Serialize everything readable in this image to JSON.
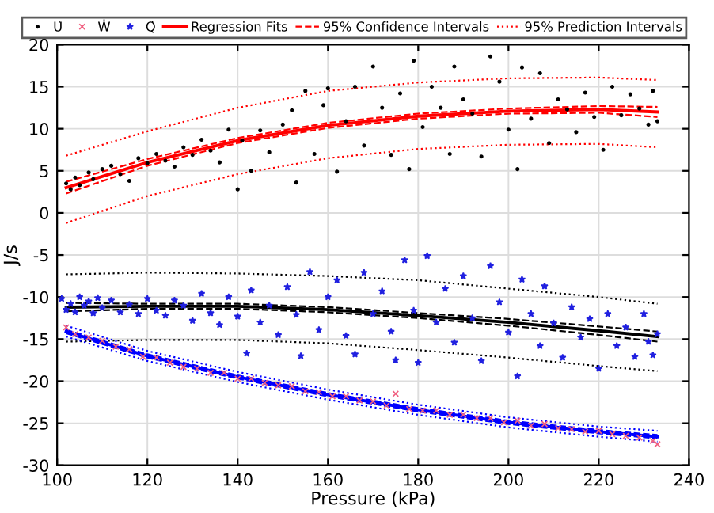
{
  "chart_data": {
    "type": "scatter",
    "xlabel": "Pressure (kPa)",
    "ylabel": "J/s",
    "xlim": [
      100,
      240
    ],
    "xticks": [
      100,
      120,
      140,
      160,
      180,
      200,
      220,
      240
    ],
    "ylim": [
      -30,
      20
    ],
    "yticks": [
      -30,
      -25,
      -20,
      -15,
      -10,
      -5,
      0,
      5,
      10,
      15,
      20
    ],
    "grid": true,
    "legend": "top",
    "series": [
      {
        "name": "U̇",
        "color": "#000000",
        "marker": "circle",
        "x": [
          102,
          103,
          104,
          105,
          107,
          108,
          110,
          112,
          114,
          116,
          118,
          120,
          122,
          124,
          126,
          128,
          130,
          132,
          134,
          136,
          138,
          140,
          141,
          143,
          145,
          147,
          150,
          152,
          153,
          155,
          157,
          159,
          160,
          162,
          164,
          166,
          168,
          170,
          172,
          174,
          176,
          178,
          179,
          181,
          183,
          185,
          187,
          188,
          190,
          192,
          194,
          196,
          198,
          200,
          202,
          203,
          205,
          207,
          209,
          211,
          213,
          215,
          217,
          219,
          221,
          223,
          225,
          227,
          229,
          231,
          232,
          233
        ],
        "values": [
          3.5,
          2.8,
          4.2,
          3.3,
          4.8,
          4.0,
          5.2,
          5.6,
          4.6,
          3.8,
          6.5,
          5.9,
          7.0,
          6.2,
          5.5,
          7.8,
          6.9,
          8.7,
          7.4,
          6.0,
          9.9,
          2.8,
          8.6,
          5.0,
          9.8,
          7.2,
          10.5,
          12.2,
          3.6,
          14.5,
          7.0,
          12.8,
          14.8,
          4.9,
          10.9,
          15.0,
          8.0,
          17.4,
          12.5,
          6.9,
          14.2,
          5.2,
          18.1,
          10.2,
          15.0,
          12.5,
          7.0,
          17.4,
          13.5,
          11.8,
          6.7,
          18.6,
          15.6,
          9.9,
          5.2,
          17.3,
          11.2,
          16.6,
          8.3,
          13.5,
          12.3,
          9.6,
          14.3,
          11.4,
          7.5,
          15.0,
          11.6,
          14.1,
          12.4,
          10.5,
          14.5,
          10.9
        ]
      },
      {
        "name": "Ẇ",
        "color": "#f06080",
        "marker": "cross",
        "x": [
          102,
          104,
          107,
          110,
          113,
          116,
          119,
          122,
          125,
          128,
          131,
          134,
          137,
          140,
          143,
          146,
          149,
          152,
          155,
          158,
          161,
          164,
          167,
          170,
          173,
          175,
          178,
          181,
          184,
          187,
          190,
          193,
          196,
          199,
          202,
          205,
          208,
          211,
          214,
          217,
          220,
          223,
          226,
          229,
          232,
          233
        ],
        "values": [
          -13.6,
          -14.4,
          -14.8,
          -15.2,
          -15.9,
          -16.2,
          -17.1,
          -17.2,
          -17.8,
          -18.3,
          -18.5,
          -19.0,
          -19.0,
          -19.7,
          -19.7,
          -20.2,
          -20.5,
          -20.6,
          -21.2,
          -21.3,
          -21.8,
          -21.8,
          -22.3,
          -22.4,
          -22.9,
          -21.5,
          -23.3,
          -23.5,
          -23.5,
          -24.0,
          -24.0,
          -24.4,
          -24.4,
          -24.9,
          -24.7,
          -25.3,
          -25.1,
          -25.6,
          -25.7,
          -26.0,
          -25.9,
          -26.3,
          -26.5,
          -26.7,
          -27.1,
          -27.5
        ]
      },
      {
        "name": "Q̇",
        "color": "#2020e0",
        "marker": "star",
        "x": [
          101,
          102,
          103,
          104,
          105,
          106,
          107,
          108,
          109,
          110,
          112,
          114,
          116,
          118,
          120,
          122,
          124,
          126,
          128,
          130,
          132,
          134,
          136,
          138,
          140,
          142,
          143,
          145,
          147,
          149,
          151,
          153,
          154,
          156,
          158,
          160,
          162,
          164,
          166,
          168,
          170,
          172,
          174,
          175,
          177,
          179,
          180,
          182,
          184,
          186,
          188,
          190,
          192,
          194,
          196,
          198,
          200,
          202,
          203,
          205,
          207,
          208,
          210,
          212,
          214,
          216,
          218,
          220,
          222,
          224,
          226,
          228,
          230,
          231,
          232,
          233
        ],
        "values": [
          -10.2,
          -11.5,
          -10.8,
          -11.8,
          -10.0,
          -11.0,
          -10.5,
          -11.9,
          -10.1,
          -11.3,
          -10.4,
          -11.8,
          -10.9,
          -12.0,
          -10.2,
          -11.6,
          -12.2,
          -10.4,
          -11.0,
          -12.8,
          -9.6,
          -11.9,
          -13.3,
          -10.0,
          -12.3,
          -16.7,
          -9.2,
          -13.0,
          -11.0,
          -14.5,
          -8.8,
          -12.1,
          -17.0,
          -7.0,
          -13.9,
          -10.0,
          -8.0,
          -14.6,
          -16.8,
          -7.1,
          -12.0,
          -9.3,
          -14.1,
          -17.5,
          -5.6,
          -11.6,
          -17.8,
          -5.1,
          -13.0,
          -9.0,
          -15.4,
          -7.5,
          -12.5,
          -17.6,
          -6.3,
          -10.6,
          -14.2,
          -19.4,
          -7.9,
          -12.0,
          -15.8,
          -8.7,
          -13.1,
          -17.2,
          -11.2,
          -14.8,
          -12.6,
          -18.5,
          -12.0,
          -15.8,
          -13.6,
          -17.1,
          -12.0,
          -15.3,
          -16.9,
          -14.4
        ]
      },
      {
        "type": "line",
        "name": "Regression Fits",
        "color": "#ff0000",
        "line_style": "solid",
        "x": [
          102,
          120,
          140,
          160,
          180,
          200,
          220,
          233
        ],
        "values": [
          3.0,
          6.0,
          8.6,
          10.4,
          11.5,
          12.1,
          12.3,
          12.0
        ]
      },
      {
        "type": "line",
        "name": "95% Confidence Intervals",
        "color": "#ff0000",
        "line_style": "dashed",
        "x": [
          102,
          120,
          140,
          160,
          180,
          200,
          220,
          233
        ],
        "values": [
          3.7,
          6.4,
          8.9,
          10.7,
          11.8,
          12.4,
          12.7,
          12.6
        ]
      },
      {
        "type": "line",
        "name": "95% Prediction Intervals",
        "color": "#ff0000",
        "line_style": "dotted",
        "x": [
          102,
          120,
          140,
          160,
          180,
          200,
          220,
          233
        ],
        "values": [
          6.8,
          9.7,
          12.5,
          14.5,
          15.5,
          16.0,
          16.1,
          15.8
        ]
      },
      {
        "type": "line",
        "color": "#ff0000",
        "line_style": "dashed",
        "x": [
          102,
          120,
          140,
          160,
          180,
          200,
          220,
          233
        ],
        "values": [
          2.3,
          5.6,
          8.3,
          10.1,
          11.2,
          11.8,
          11.9,
          11.4
        ]
      },
      {
        "type": "line",
        "color": "#ff0000",
        "line_style": "dotted",
        "x": [
          102,
          120,
          140,
          160,
          180,
          200,
          220,
          233
        ],
        "values": [
          -1.2,
          2.0,
          4.6,
          6.5,
          7.6,
          8.1,
          8.2,
          7.8
        ]
      },
      {
        "type": "line",
        "color": "#000000",
        "line_style": "solid",
        "x": [
          102,
          120,
          140,
          160,
          180,
          200,
          220,
          233
        ],
        "values": [
          -11.2,
          -11.1,
          -11.1,
          -11.5,
          -12.2,
          -13.0,
          -14.0,
          -14.7
        ]
      },
      {
        "type": "line",
        "color": "#000000",
        "line_style": "dashed",
        "x": [
          102,
          120,
          140,
          160,
          180,
          200,
          220,
          233
        ],
        "values": [
          -10.7,
          -10.8,
          -10.8,
          -11.2,
          -11.9,
          -12.6,
          -13.5,
          -14.1
        ]
      },
      {
        "type": "line",
        "color": "#000000",
        "line_style": "dashed",
        "x": [
          102,
          120,
          140,
          160,
          180,
          200,
          220,
          233
        ],
        "values": [
          -11.7,
          -11.4,
          -11.4,
          -11.8,
          -12.5,
          -13.4,
          -14.5,
          -15.3
        ]
      },
      {
        "type": "line",
        "color": "#000000",
        "line_style": "dotted",
        "x": [
          102,
          120,
          140,
          160,
          180,
          200,
          220,
          233
        ],
        "values": [
          -7.3,
          -7.1,
          -7.2,
          -7.5,
          -8.0,
          -9.0,
          -10.0,
          -10.8
        ]
      },
      {
        "type": "line",
        "color": "#000000",
        "line_style": "dotted",
        "x": [
          102,
          120,
          140,
          160,
          180,
          200,
          220,
          233
        ],
        "values": [
          -15.3,
          -15.1,
          -15.1,
          -15.5,
          -16.3,
          -17.2,
          -18.2,
          -18.8
        ]
      },
      {
        "type": "line",
        "color": "#0000ff",
        "line_style": "solid",
        "x": [
          102,
          120,
          140,
          160,
          180,
          200,
          220,
          233
        ],
        "values": [
          -14.1,
          -17.0,
          -19.5,
          -21.6,
          -23.4,
          -24.9,
          -26.0,
          -26.6
        ]
      },
      {
        "type": "line",
        "color": "#0000ff",
        "line_style": "dashed",
        "x": [
          102,
          120,
          140,
          160,
          180,
          200,
          220,
          233
        ],
        "values": [
          -13.9,
          -16.8,
          -19.3,
          -21.4,
          -23.2,
          -24.7,
          -25.8,
          -26.4
        ]
      },
      {
        "type": "line",
        "color": "#0000ff",
        "line_style": "dashed",
        "x": [
          102,
          120,
          140,
          160,
          180,
          200,
          220,
          233
        ],
        "values": [
          -14.3,
          -17.2,
          -19.7,
          -21.8,
          -23.6,
          -25.1,
          -26.2,
          -26.8
        ]
      },
      {
        "type": "line",
        "color": "#0000ff",
        "line_style": "dotted",
        "x": [
          102,
          120,
          140,
          160,
          180,
          200,
          220,
          233
        ],
        "values": [
          -13.4,
          -16.4,
          -18.9,
          -21.0,
          -22.8,
          -24.3,
          -25.4,
          -25.9
        ]
      },
      {
        "type": "line",
        "color": "#0000ff",
        "line_style": "dotted",
        "x": [
          102,
          120,
          140,
          160,
          180,
          200,
          220,
          233
        ],
        "values": [
          -14.7,
          -17.6,
          -20.1,
          -22.2,
          -24.0,
          -25.5,
          -26.6,
          -27.2
        ]
      }
    ]
  }
}
